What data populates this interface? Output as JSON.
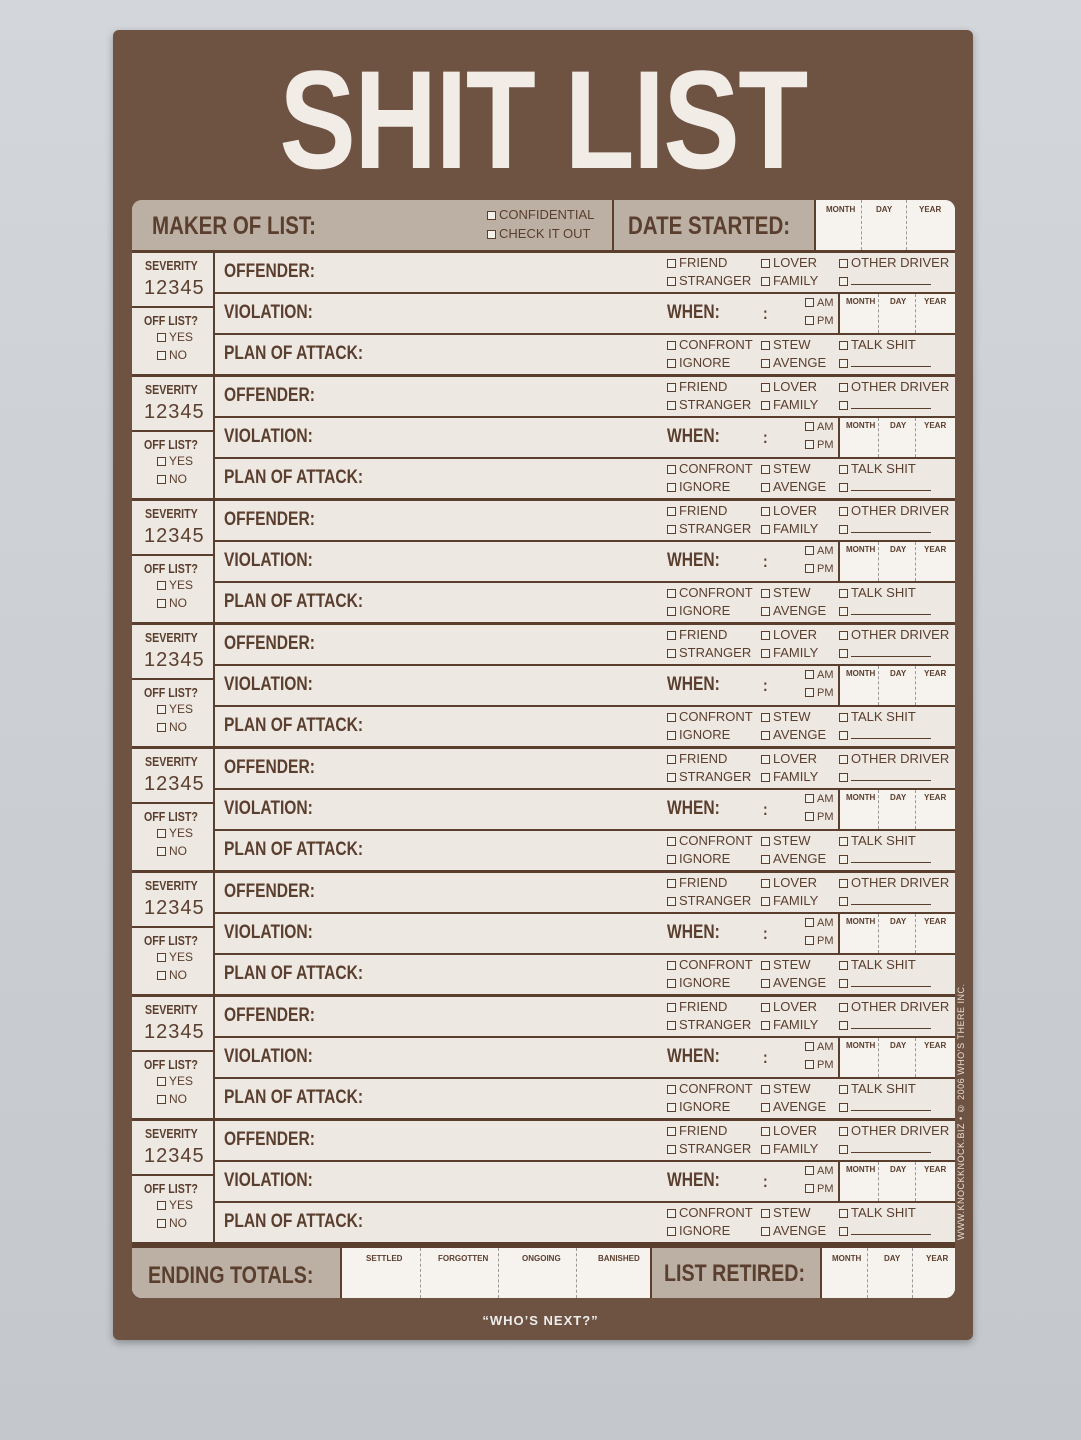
{
  "title": "SHIT LIST",
  "header": {
    "maker_label": "MAKER OF LIST:",
    "options": [
      "CONFIDENTIAL",
      "CHECK IT OUT"
    ],
    "date_label": "DATE STARTED:",
    "date_cols": [
      "MONTH",
      "DAY",
      "YEAR"
    ]
  },
  "entry": {
    "severity_label": "SEVERITY",
    "severity_scale": "12345",
    "off_list_label": "OFF LIST?",
    "off_list_options": [
      "YES",
      "NO"
    ],
    "offender_label": "OFFENDER:",
    "offender_options": [
      "FRIEND",
      "LOVER",
      "OTHER DRIVER",
      "STRANGER",
      "FAMILY",
      ""
    ],
    "violation_label": "VIOLATION:",
    "when_label": "WHEN:",
    "time_sep": ":",
    "ampm": [
      "AM",
      "PM"
    ],
    "date_cols": [
      "MONTH",
      "DAY",
      "YEAR"
    ],
    "plan_label": "PLAN OF ATTACK:",
    "plan_options": [
      "CONFRONT",
      "STEW",
      "TALK SHIT",
      "IGNORE",
      "AVENGE",
      ""
    ]
  },
  "entry_count": 8,
  "footer": {
    "totals_label": "ENDING TOTALS:",
    "totals_cols": [
      "SETTLED",
      "FORGOTTEN",
      "ONGOING",
      "BANISHED"
    ],
    "retired_label": "LIST RETIRED:",
    "date_cols": [
      "MONTH",
      "DAY",
      "YEAR"
    ]
  },
  "tagline": "“WHO’S NEXT?”",
  "side_text": "WWW.KNOCKKNOCK.BIZ • © 2006 WHO’S THERE INC.",
  "colors": {
    "brown": "#6e5242",
    "paper": "#ede8e2",
    "band": "#bcb0a5"
  }
}
